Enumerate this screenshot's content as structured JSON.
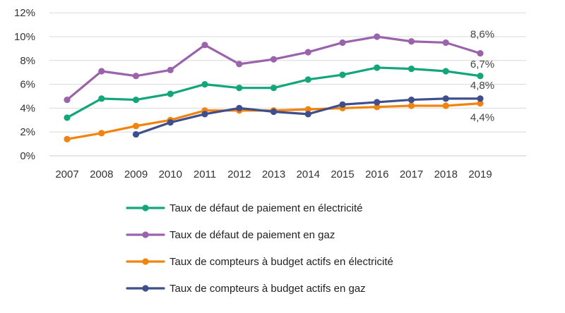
{
  "chart_data": {
    "type": "line",
    "x": [
      "2007",
      "2008",
      "2009",
      "2010",
      "2011",
      "2012",
      "2013",
      "2014",
      "2015",
      "2016",
      "2017",
      "2018",
      "2019"
    ],
    "ylim": [
      0,
      12
    ],
    "yticks": [
      "0%",
      "2%",
      "4%",
      "6%",
      "8%",
      "10%",
      "12%"
    ],
    "grid": true,
    "legend": "bottom",
    "series": [
      {
        "name": "Taux de défaut de paiement en électricité",
        "color": "#13a67a",
        "values": [
          3.2,
          4.8,
          4.7,
          5.2,
          6.0,
          5.7,
          5.7,
          6.4,
          6.8,
          7.4,
          7.3,
          7.1,
          6.7
        ]
      },
      {
        "name": "Taux de défaut de paiement en gaz",
        "color": "#9a63ac",
        "values": [
          4.7,
          7.1,
          6.7,
          7.2,
          9.3,
          7.7,
          8.1,
          8.7,
          9.5,
          10.0,
          9.6,
          9.5,
          8.6
        ]
      },
      {
        "name": "Taux de compteurs à budget actifs en électricité",
        "color": "#f0840f",
        "values": [
          1.4,
          1.9,
          2.5,
          3.0,
          3.8,
          3.8,
          3.8,
          3.9,
          4.0,
          4.1,
          4.2,
          4.2,
          4.4
        ]
      },
      {
        "name": "Taux de compteurs à budget actifs en gaz",
        "color": "#3f4e8c",
        "values": [
          null,
          null,
          1.8,
          2.8,
          3.5,
          4.0,
          3.7,
          3.5,
          4.3,
          4.5,
          4.7,
          4.8,
          4.8
        ]
      }
    ],
    "annotations": [
      {
        "series": 1,
        "index": 12,
        "text": "8,6%"
      },
      {
        "series": 0,
        "index": 12,
        "text": "6,7%"
      },
      {
        "series": 3,
        "index": 12,
        "text": "4,8%"
      },
      {
        "series": 2,
        "index": 12,
        "text": "4,4%"
      }
    ]
  }
}
